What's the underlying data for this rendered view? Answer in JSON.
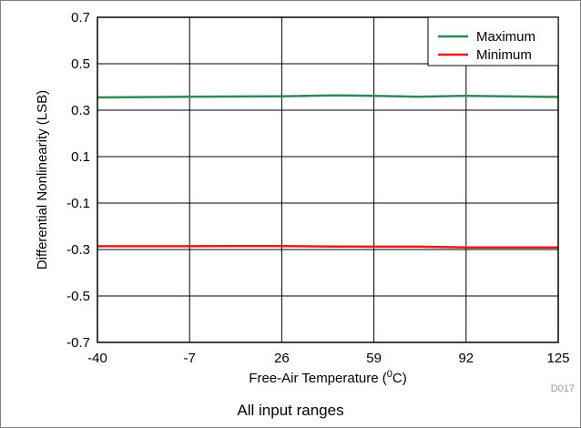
{
  "chart_data": {
    "type": "line",
    "xlabel": "Free-Air Temperature (",
    "xlabel_sup": "0",
    "xlabel_unit": "C)",
    "ylabel": "Differential Nonlinearity (LSB)",
    "x_ticks": [
      "-40",
      "-7",
      "26",
      "59",
      "92",
      "125"
    ],
    "y_ticks": [
      "0.7",
      "0.5",
      "0.3",
      "0.1",
      "-0.1",
      "-0.3",
      "-0.5",
      "-0.7"
    ],
    "xlim": [
      -40,
      125
    ],
    "ylim": [
      -0.7,
      0.7
    ],
    "grid": true,
    "legend_position": "top-right",
    "x": [
      -40,
      -7,
      26,
      45,
      59,
      75,
      92,
      125
    ],
    "series": [
      {
        "name": "Maximum",
        "color": "#2e8b57",
        "values": [
          0.355,
          0.358,
          0.36,
          0.364,
          0.362,
          0.358,
          0.362,
          0.357
        ]
      },
      {
        "name": "Minimum",
        "color": "#e41a1c",
        "values": [
          -0.286,
          -0.286,
          -0.285,
          -0.287,
          -0.288,
          -0.288,
          -0.291,
          -0.291
        ]
      }
    ],
    "figure_id": "D017"
  },
  "caption": "All input ranges"
}
